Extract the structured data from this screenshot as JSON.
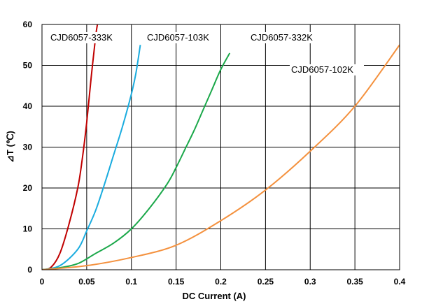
{
  "chart_data": {
    "type": "line",
    "xlabel": "DC Current (A)",
    "ylabel": "⊿T (℃)",
    "xlim": [
      0,
      0.4
    ],
    "ylim": [
      0,
      60
    ],
    "x_ticks": [
      "0",
      "0.05",
      "0.1",
      "0.15",
      "0.2",
      "0.25",
      "0.3",
      "0.35",
      "0.4"
    ],
    "y_ticks": [
      "0",
      "10",
      "20",
      "30",
      "40",
      "50",
      "60"
    ],
    "grid": true,
    "series": [
      {
        "name": "CJD6057-333K",
        "color": "#c00000",
        "points": [
          [
            0,
            0
          ],
          [
            0.01,
            0.6
          ],
          [
            0.02,
            4
          ],
          [
            0.03,
            11
          ],
          [
            0.04,
            20
          ],
          [
            0.045,
            27
          ],
          [
            0.05,
            36
          ],
          [
            0.055,
            47
          ],
          [
            0.06,
            57
          ],
          [
            0.062,
            60
          ]
        ]
      },
      {
        "name": "CJD6057-103K",
        "color": "#1aacdf",
        "points": [
          [
            0,
            0
          ],
          [
            0.02,
            1
          ],
          [
            0.04,
            5
          ],
          [
            0.05,
            9.5
          ],
          [
            0.06,
            14.5
          ],
          [
            0.07,
            21
          ],
          [
            0.08,
            28
          ],
          [
            0.09,
            35
          ],
          [
            0.1,
            43
          ],
          [
            0.105,
            48
          ],
          [
            0.11,
            55
          ]
        ]
      },
      {
        "name": "CJD6057-332K",
        "color": "#1ba84a",
        "points": [
          [
            0,
            0
          ],
          [
            0.02,
            0.5
          ],
          [
            0.04,
            1.5
          ],
          [
            0.06,
            4
          ],
          [
            0.08,
            6.5
          ],
          [
            0.1,
            10
          ],
          [
            0.12,
            15
          ],
          [
            0.14,
            21
          ],
          [
            0.15,
            25
          ],
          [
            0.16,
            29.5
          ],
          [
            0.17,
            34
          ],
          [
            0.18,
            39
          ],
          [
            0.19,
            44
          ],
          [
            0.2,
            49
          ],
          [
            0.21,
            53
          ]
        ]
      },
      {
        "name": "CJD6057-102K",
        "color": "#f4913e",
        "points": [
          [
            0,
            0
          ],
          [
            0.05,
            1
          ],
          [
            0.1,
            3
          ],
          [
            0.15,
            6
          ],
          [
            0.2,
            12
          ],
          [
            0.25,
            19.5
          ],
          [
            0.3,
            29
          ],
          [
            0.35,
            40
          ],
          [
            0.4,
            55
          ]
        ]
      }
    ]
  }
}
